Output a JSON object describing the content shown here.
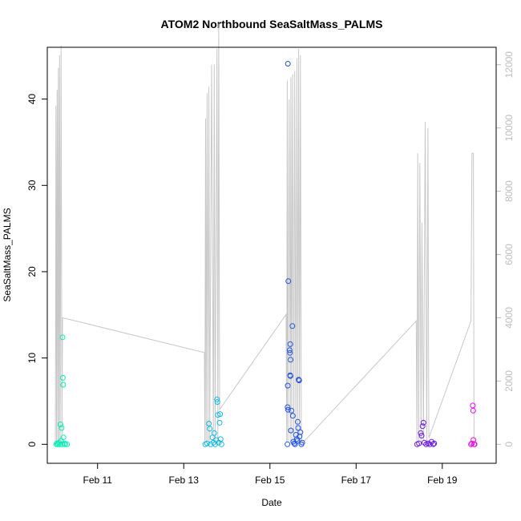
{
  "chart_data": {
    "type": "scatter",
    "title": "ATOM2 Northbound SeaSaltMass_PALMS",
    "xlabel": "Date",
    "ylabel": "SeaSaltMass_PALMS",
    "x_axis": {
      "type": "date",
      "xlim": [
        "2017-02-09 20:00",
        "2017-02-20 06:00"
      ],
      "ticks": [
        {
          "date": "2017-02-11 00:00",
          "label": "Feb 11"
        },
        {
          "date": "2017-02-13 00:00",
          "label": "Feb 13"
        },
        {
          "date": "2017-02-15 00:00",
          "label": "Feb 15"
        },
        {
          "date": "2017-02-17 00:00",
          "label": "Feb 17"
        },
        {
          "date": "2017-02-19 00:00",
          "label": "Feb 19"
        }
      ]
    },
    "y_left": {
      "ylim": [
        -2.2,
        46
      ],
      "ticks": [
        0,
        10,
        20,
        30,
        40
      ]
    },
    "y_right": {
      "color": "#bdbdbd",
      "ylim": [
        -600,
        12550
      ],
      "ticks": [
        0,
        2000,
        4000,
        6000,
        8000,
        10000,
        12000
      ]
    },
    "grid": false,
    "legend": "none",
    "colors": {
      "line": "#c8c8c8",
      "frame": "#000000"
    },
    "scatter_series": [
      {
        "color": "#00f0b4",
        "points": [
          [
            "2017-02-10 01:00",
            0.0
          ],
          [
            "2017-02-10 01:30",
            0.1
          ],
          [
            "2017-02-10 02:00",
            0.0
          ],
          [
            "2017-02-10 02:30",
            0.2
          ],
          [
            "2017-02-10 03:00",
            0.0
          ],
          [
            "2017-02-10 03:20",
            2.3
          ],
          [
            "2017-02-10 03:40",
            0.4
          ],
          [
            "2017-02-10 04:00",
            1.9
          ],
          [
            "2017-02-10 04:20",
            0.0
          ],
          [
            "2017-02-10 04:30",
            12.4
          ],
          [
            "2017-02-10 04:40",
            7.7
          ],
          [
            "2017-02-10 04:50",
            6.9
          ],
          [
            "2017-02-10 05:00",
            0.8
          ],
          [
            "2017-02-10 05:30",
            0.1
          ],
          [
            "2017-02-10 06:00",
            0.0
          ],
          [
            "2017-02-10 07:00",
            0.0
          ]
        ]
      },
      {
        "color": "#0fbbe6",
        "points": [
          [
            "2017-02-13 12:00",
            0.0
          ],
          [
            "2017-02-13 13:00",
            0.1
          ],
          [
            "2017-02-13 14:00",
            2.4
          ],
          [
            "2017-02-13 14:30",
            1.8
          ],
          [
            "2017-02-13 15:00",
            0.0
          ],
          [
            "2017-02-13 16:00",
            0.8
          ],
          [
            "2017-02-13 16:30",
            0.2
          ],
          [
            "2017-02-13 17:00",
            1.3
          ],
          [
            "2017-02-13 17:30",
            0.0
          ],
          [
            "2017-02-13 18:00",
            0.5
          ],
          [
            "2017-02-13 18:30",
            5.2
          ],
          [
            "2017-02-13 18:45",
            4.9
          ],
          [
            "2017-02-13 19:00",
            3.4
          ],
          [
            "2017-02-13 19:30",
            0.2
          ],
          [
            "2017-02-13 20:00",
            2.5
          ],
          [
            "2017-02-13 20:15",
            3.5
          ],
          [
            "2017-02-13 20:30",
            0.6
          ],
          [
            "2017-02-13 21:00",
            0.0
          ]
        ]
      },
      {
        "color": "#1f52e4",
        "points": [
          [
            "2017-02-15 10:00",
            44.1
          ],
          [
            "2017-02-15 09:45",
            0.0
          ],
          [
            "2017-02-15 10:15",
            18.9
          ],
          [
            "2017-02-15 09:50",
            4.3
          ],
          [
            "2017-02-15 10:05",
            4.0
          ],
          [
            "2017-02-15 09:55",
            6.8
          ],
          [
            "2017-02-15 11:00",
            10.9
          ],
          [
            "2017-02-15 11:10",
            10.6
          ],
          [
            "2017-02-15 11:20",
            11.6
          ],
          [
            "2017-02-15 11:30",
            9.8
          ],
          [
            "2017-02-15 11:15",
            8.0
          ],
          [
            "2017-02-15 11:25",
            7.9
          ],
          [
            "2017-02-15 11:40",
            1.6
          ],
          [
            "2017-02-15 12:00",
            3.9
          ],
          [
            "2017-02-15 12:30",
            13.7
          ],
          [
            "2017-02-15 12:45",
            3.3
          ],
          [
            "2017-02-15 13:00",
            0.3
          ],
          [
            "2017-02-15 14:00",
            0.0
          ],
          [
            "2017-02-15 14:30",
            1.1
          ],
          [
            "2017-02-15 15:00",
            0.6
          ],
          [
            "2017-02-15 15:30",
            2.6
          ],
          [
            "2017-02-15 15:45",
            1.9
          ],
          [
            "2017-02-15 16:00",
            7.5
          ],
          [
            "2017-02-15 16:15",
            7.4
          ],
          [
            "2017-02-15 16:30",
            0.9
          ],
          [
            "2017-02-15 17:00",
            1.4
          ],
          [
            "2017-02-15 17:30",
            0.0
          ],
          [
            "2017-02-15 18:00",
            0.2
          ],
          [
            "2017-02-15 15:15",
            0.4
          ],
          [
            "2017-02-15 13:30",
            0.1
          ]
        ]
      },
      {
        "color": "#6a18e8",
        "points": [
          [
            "2017-02-18 10:00",
            0.0
          ],
          [
            "2017-02-18 11:00",
            0.1
          ],
          [
            "2017-02-18 12:00",
            1.3
          ],
          [
            "2017-02-18 12:30",
            1.0
          ],
          [
            "2017-02-18 13:00",
            2.1
          ],
          [
            "2017-02-18 13:30",
            2.5
          ],
          [
            "2017-02-18 14:00",
            0.2
          ],
          [
            "2017-02-18 15:00",
            0.0
          ],
          [
            "2017-02-18 16:00",
            0.1
          ],
          [
            "2017-02-18 17:00",
            0.0
          ],
          [
            "2017-02-18 18:00",
            0.3
          ],
          [
            "2017-02-18 19:00",
            0.0
          ],
          [
            "2017-02-18 19:30",
            0.1
          ]
        ]
      },
      {
        "color": "#e90ae6",
        "points": [
          [
            "2017-02-19 16:00",
            0.0
          ],
          [
            "2017-02-19 16:30",
            0.1
          ],
          [
            "2017-02-19 17:00",
            4.5
          ],
          [
            "2017-02-19 17:10",
            3.9
          ],
          [
            "2017-02-19 17:20",
            0.5
          ],
          [
            "2017-02-19 17:40",
            0.0
          ],
          [
            "2017-02-19 18:00",
            0.0
          ]
        ]
      }
    ],
    "line_series": {
      "axis": "right",
      "points": [
        [
          "2017-02-10 00:30",
          0
        ],
        [
          "2017-02-10 00:50",
          10700
        ],
        [
          "2017-02-10 01:10",
          100
        ],
        [
          "2017-02-10 01:30",
          11200
        ],
        [
          "2017-02-10 01:50",
          100
        ],
        [
          "2017-02-10 02:10",
          11900
        ],
        [
          "2017-02-10 02:30",
          100
        ],
        [
          "2017-02-10 02:50",
          12300
        ],
        [
          "2017-02-10 03:10",
          100
        ],
        [
          "2017-02-10 03:40",
          12600
        ],
        [
          "2017-02-10 04:10",
          100
        ],
        [
          "2017-02-10 04:30",
          4000
        ],
        [
          "2017-02-13 11:30",
          2900
        ],
        [
          "2017-02-13 11:45",
          100
        ],
        [
          "2017-02-13 12:10",
          10300
        ],
        [
          "2017-02-13 12:30",
          100
        ],
        [
          "2017-02-13 13:00",
          11100
        ],
        [
          "2017-02-13 13:30",
          100
        ],
        [
          "2017-02-13 14:00",
          11300
        ],
        [
          "2017-02-13 14:30",
          100
        ],
        [
          "2017-02-13 15:30",
          12000
        ],
        [
          "2017-02-13 16:30",
          100
        ],
        [
          "2017-02-13 17:00",
          12000
        ],
        [
          "2017-02-13 17:30",
          100
        ],
        [
          "2017-02-13 18:30",
          12500
        ],
        [
          "2017-02-13 19:00",
          100
        ],
        [
          "2017-02-13 19:30",
          13300
        ],
        [
          "2017-02-13 20:00",
          1100
        ],
        [
          "2017-02-15 09:00",
          4100
        ],
        [
          "2017-02-15 09:20",
          100
        ],
        [
          "2017-02-15 09:40",
          11500
        ],
        [
          "2017-02-15 10:00",
          100
        ],
        [
          "2017-02-15 10:40",
          10900
        ],
        [
          "2017-02-15 11:20",
          100
        ],
        [
          "2017-02-15 11:40",
          11600
        ],
        [
          "2017-02-15 12:10",
          100
        ],
        [
          "2017-02-15 12:40",
          11700
        ],
        [
          "2017-02-15 13:20",
          100
        ],
        [
          "2017-02-15 13:50",
          11800
        ],
        [
          "2017-02-15 14:30",
          100
        ],
        [
          "2017-02-15 15:00",
          12200
        ],
        [
          "2017-02-15 15:30",
          100
        ],
        [
          "2017-02-15 16:00",
          12500
        ],
        [
          "2017-02-15 16:30",
          100
        ],
        [
          "2017-02-15 17:00",
          12300
        ],
        [
          "2017-02-15 17:30",
          0
        ],
        [
          "2017-02-18 09:30",
          3900
        ],
        [
          "2017-02-18 09:50",
          100
        ],
        [
          "2017-02-18 10:20",
          9200
        ],
        [
          "2017-02-18 10:50",
          100
        ],
        [
          "2017-02-18 11:30",
          8900
        ],
        [
          "2017-02-18 12:10",
          100
        ],
        [
          "2017-02-18 12:40",
          7000
        ],
        [
          "2017-02-18 13:30",
          100
        ],
        [
          "2017-02-18 14:30",
          10200
        ],
        [
          "2017-02-18 15:20",
          100
        ],
        [
          "2017-02-18 16:00",
          10000
        ],
        [
          "2017-02-18 16:30",
          200
        ],
        [
          "2017-02-19 16:00",
          3900
        ],
        [
          "2017-02-19 16:30",
          9200
        ],
        [
          "2017-02-19 17:20",
          9200
        ],
        [
          "2017-02-19 17:40",
          0
        ]
      ]
    }
  }
}
